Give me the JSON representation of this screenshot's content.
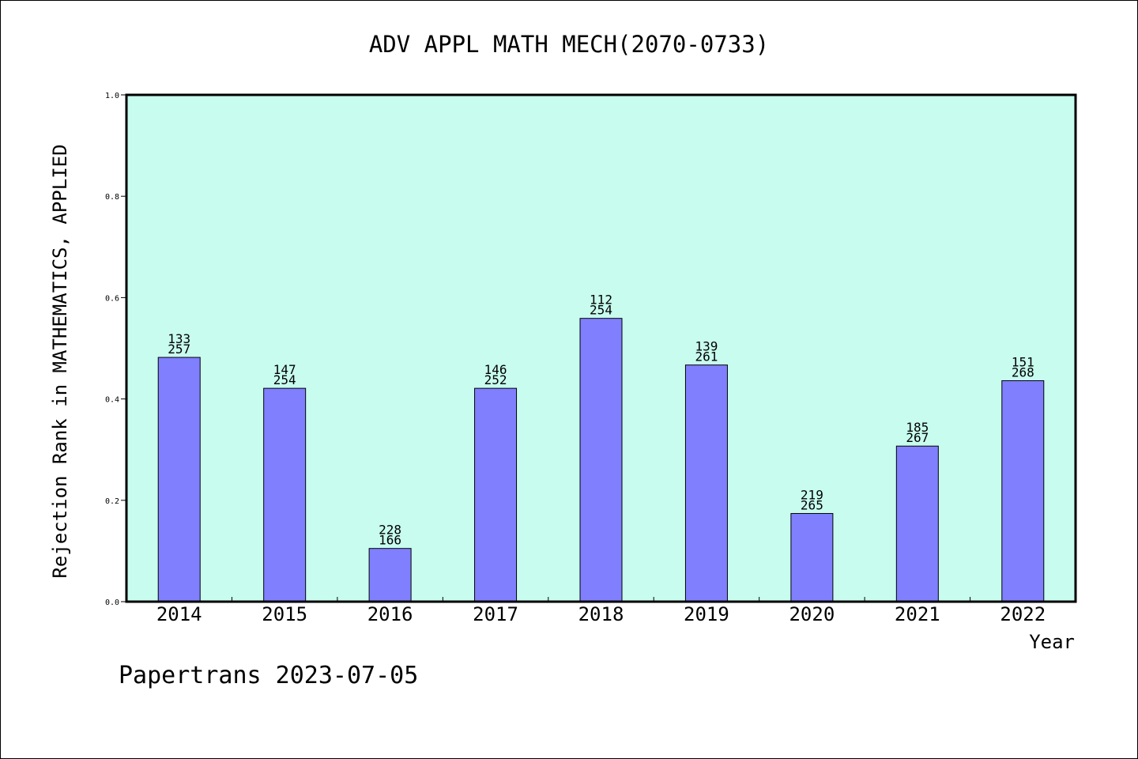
{
  "chart_data": {
    "type": "bar",
    "title": "ADV APPL MATH MECH(2070-0733)",
    "xlabel": "Year",
    "ylabel": "Rejection Rank in MATHEMATICS, APPLIED",
    "ylim": [
      0,
      1.0
    ],
    "yticks": [
      "0.0",
      "0.2",
      "0.4",
      "0.6",
      "0.8",
      "1.0"
    ],
    "categories": [
      "2014",
      "2015",
      "2016",
      "2017",
      "2018",
      "2019",
      "2020",
      "2021",
      "2022"
    ],
    "values": [
      0.482,
      0.421,
      0.105,
      0.421,
      0.559,
      0.467,
      0.174,
      0.307,
      0.436
    ],
    "labels_top": [
      "133",
      "147",
      "228",
      "146",
      "112",
      "139",
      "219",
      "185",
      "151"
    ],
    "labels_bottom": [
      "257",
      "254",
      "166",
      "252",
      "254",
      "261",
      "265",
      "267",
      "268"
    ],
    "grid": false,
    "plot_background": "#c8fcee",
    "bar_color": "#8080ff",
    "footer": "Papertrans 2023-07-05"
  }
}
